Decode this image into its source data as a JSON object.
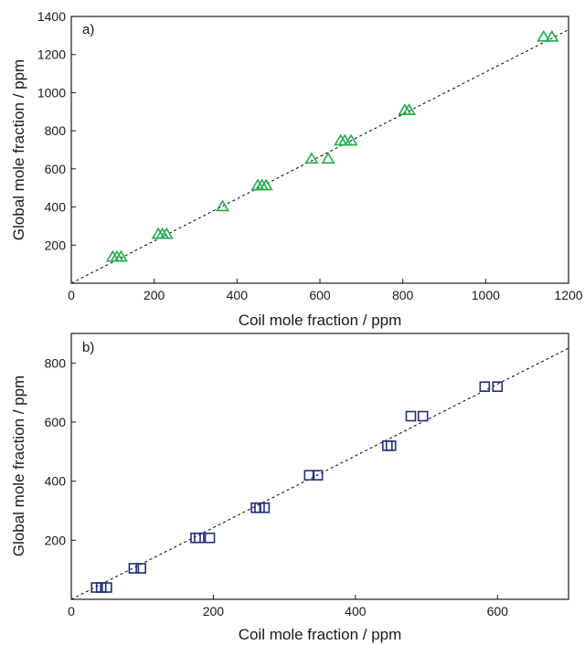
{
  "chart_data": [
    {
      "type": "scatter",
      "panel_label": "a)",
      "xlabel": "Coil mole fraction / ppm",
      "ylabel": "Global mole fraction / ppm",
      "xlim": [
        0,
        1200
      ],
      "ylim": [
        0,
        1400
      ],
      "xticks": [
        0,
        200,
        400,
        600,
        800,
        1000,
        1200
      ],
      "yticks": [
        200,
        400,
        600,
        800,
        1000,
        1200,
        1400
      ],
      "grid": false,
      "marker": "triangle-open",
      "marker_color": "#1fae4b",
      "fit_line": {
        "style": "dashed",
        "color": "#000000",
        "from": [
          0,
          0
        ],
        "to": [
          1200,
          1330
        ]
      },
      "series": [
        {
          "x": [
            100,
            110,
            120,
            210,
            220,
            230,
            365,
            450,
            460,
            470,
            580,
            620,
            650,
            660,
            675,
            805,
            815,
            1140,
            1160
          ],
          "y": [
            135,
            135,
            135,
            255,
            255,
            255,
            400,
            510,
            510,
            510,
            650,
            650,
            745,
            745,
            745,
            905,
            905,
            1290,
            1290
          ]
        }
      ]
    },
    {
      "type": "scatter",
      "panel_label": "b)",
      "xlabel": "Coil mole fraction / ppm",
      "ylabel": "Global mole fraction / ppm",
      "xlim": [
        0,
        700
      ],
      "ylim": [
        0,
        900
      ],
      "xticks": [
        0,
        200,
        400,
        600
      ],
      "yticks": [
        200,
        400,
        600,
        800
      ],
      "grid": false,
      "marker": "square-open",
      "marker_color": "#1f2f7a",
      "fit_line": {
        "style": "dashed",
        "color": "#000000",
        "from": [
          0,
          0
        ],
        "to": [
          700,
          850
        ]
      },
      "series": [
        {
          "x": [
            35,
            42,
            50,
            88,
            98,
            175,
            180,
            195,
            260,
            265,
            272,
            335,
            347,
            445,
            450,
            478,
            495,
            582,
            600
          ],
          "y": [
            40,
            40,
            40,
            105,
            105,
            208,
            208,
            208,
            310,
            310,
            310,
            420,
            420,
            520,
            520,
            620,
            620,
            720,
            720
          ]
        }
      ]
    }
  ]
}
